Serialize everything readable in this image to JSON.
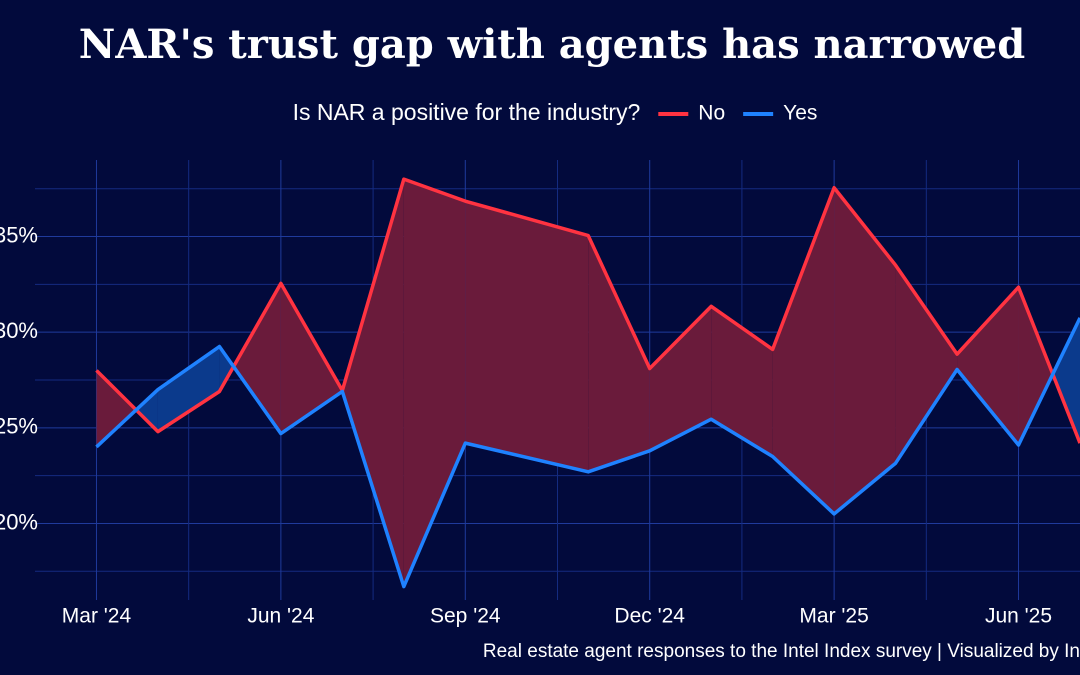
{
  "chart_data": {
    "type": "line",
    "title": "NAR's trust gap with agents has narrowed",
    "legend_title": "Is NAR a positive for the industry?",
    "caption": "Real estate agent responses to the Intel Index survey | Visualized by In",
    "x": [
      "2024-03",
      "2024-04",
      "2024-05",
      "2024-06",
      "2024-07",
      "2024-08",
      "2024-09",
      "2024-11",
      "2024-12",
      "2025-01",
      "2025-02",
      "2025-03",
      "2025-04",
      "2025-05",
      "2025-06",
      "2025-07"
    ],
    "series": [
      {
        "name": "No",
        "color": "#ff3341",
        "values": [
          28.0,
          24.8,
          26.9,
          32.55,
          26.95,
          38.0,
          36.85,
          35.05,
          28.1,
          31.35,
          29.1,
          37.55,
          33.5,
          28.85,
          32.35,
          24.2
        ]
      },
      {
        "name": "Yes",
        "color": "#1f82ff",
        "values": [
          24.0,
          27.0,
          29.25,
          24.7,
          26.9,
          16.7,
          24.2,
          22.7,
          23.8,
          25.45,
          23.5,
          20.5,
          23.15,
          28.05,
          24.1,
          30.75
        ]
      }
    ],
    "gap_colors": {
      "No": "#6a1b3b",
      "Yes": "#0b3a8c"
    },
    "xlim": [
      "2024-02",
      "2025-07"
    ],
    "xticks": [
      {
        "value": "2024-03",
        "label": "Mar '24"
      },
      {
        "value": "2024-06",
        "label": "Jun '24"
      },
      {
        "value": "2024-09",
        "label": "Sep '24"
      },
      {
        "value": "2024-12",
        "label": "Dec '24"
      },
      {
        "value": "2025-03",
        "label": "Mar '25"
      },
      {
        "value": "2025-06",
        "label": "Jun '25"
      }
    ],
    "ylim": [
      16,
      39
    ],
    "yticks": [
      {
        "value": 20,
        "label": "20%"
      },
      {
        "value": 25,
        "label": "25%"
      },
      {
        "value": 30,
        "label": "30%"
      },
      {
        "value": 35,
        "label": "35%"
      }
    ],
    "grid": true
  }
}
